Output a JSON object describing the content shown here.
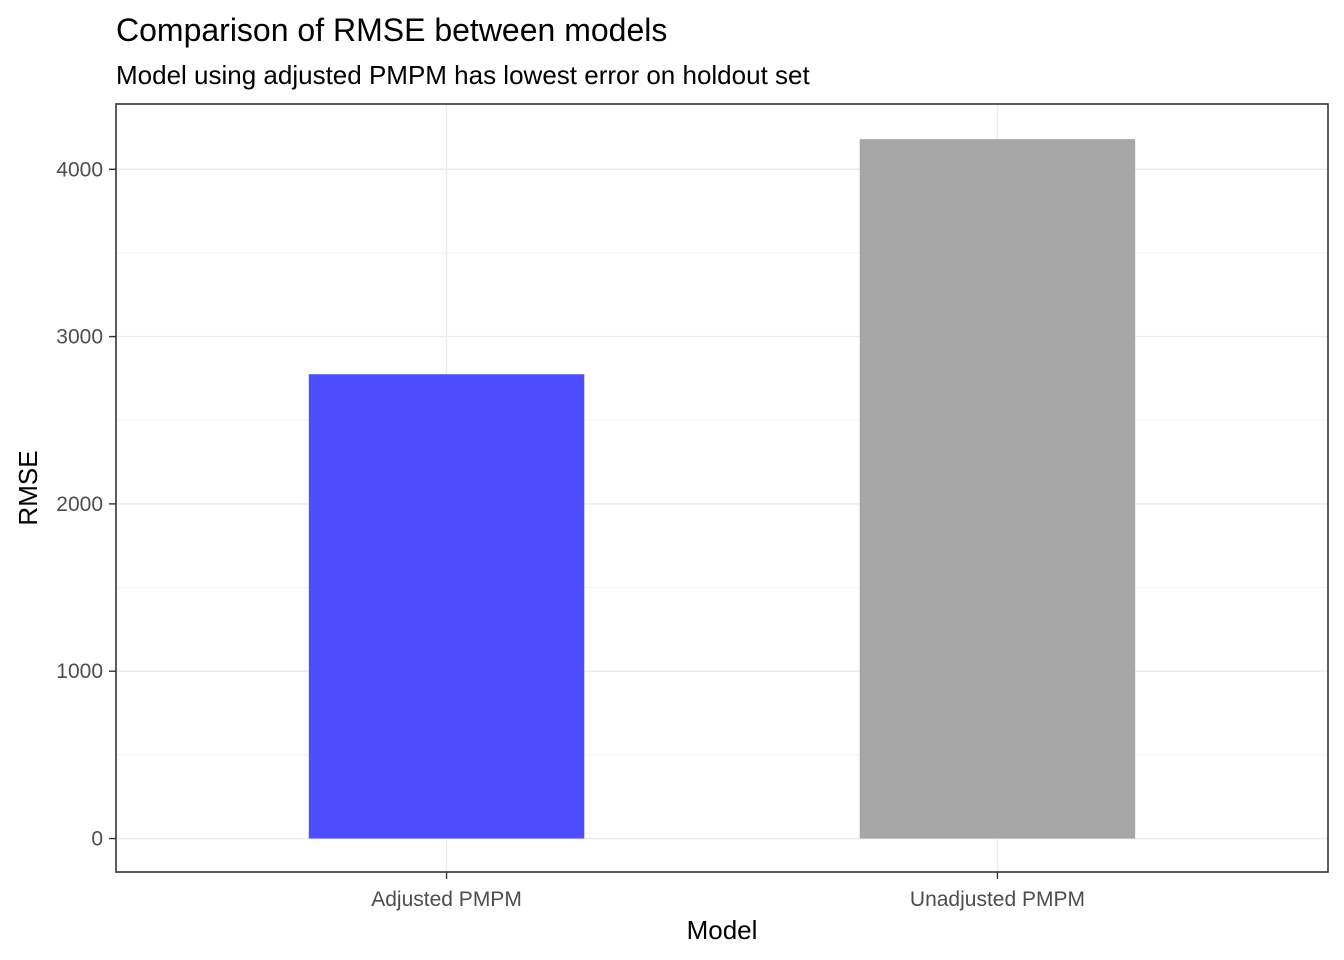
{
  "chart_data": {
    "type": "bar",
    "title": "Comparison of RMSE between models",
    "subtitle": "Model using adjusted PMPM has lowest error on holdout set",
    "xlabel": "Model",
    "ylabel": "RMSE",
    "categories": [
      "Adjusted PMPM",
      "Unadjusted PMPM"
    ],
    "values": [
      2775,
      4180
    ],
    "colors": [
      "#4d4dff",
      "#a6a6a6"
    ],
    "ylim": [
      -200,
      4390
    ],
    "yticks": [
      0,
      1000,
      2000,
      3000,
      4000
    ],
    "ytick_labels": [
      "0",
      "1000",
      "2000",
      "3000",
      "4000"
    ],
    "grid": true,
    "legend": "none"
  }
}
